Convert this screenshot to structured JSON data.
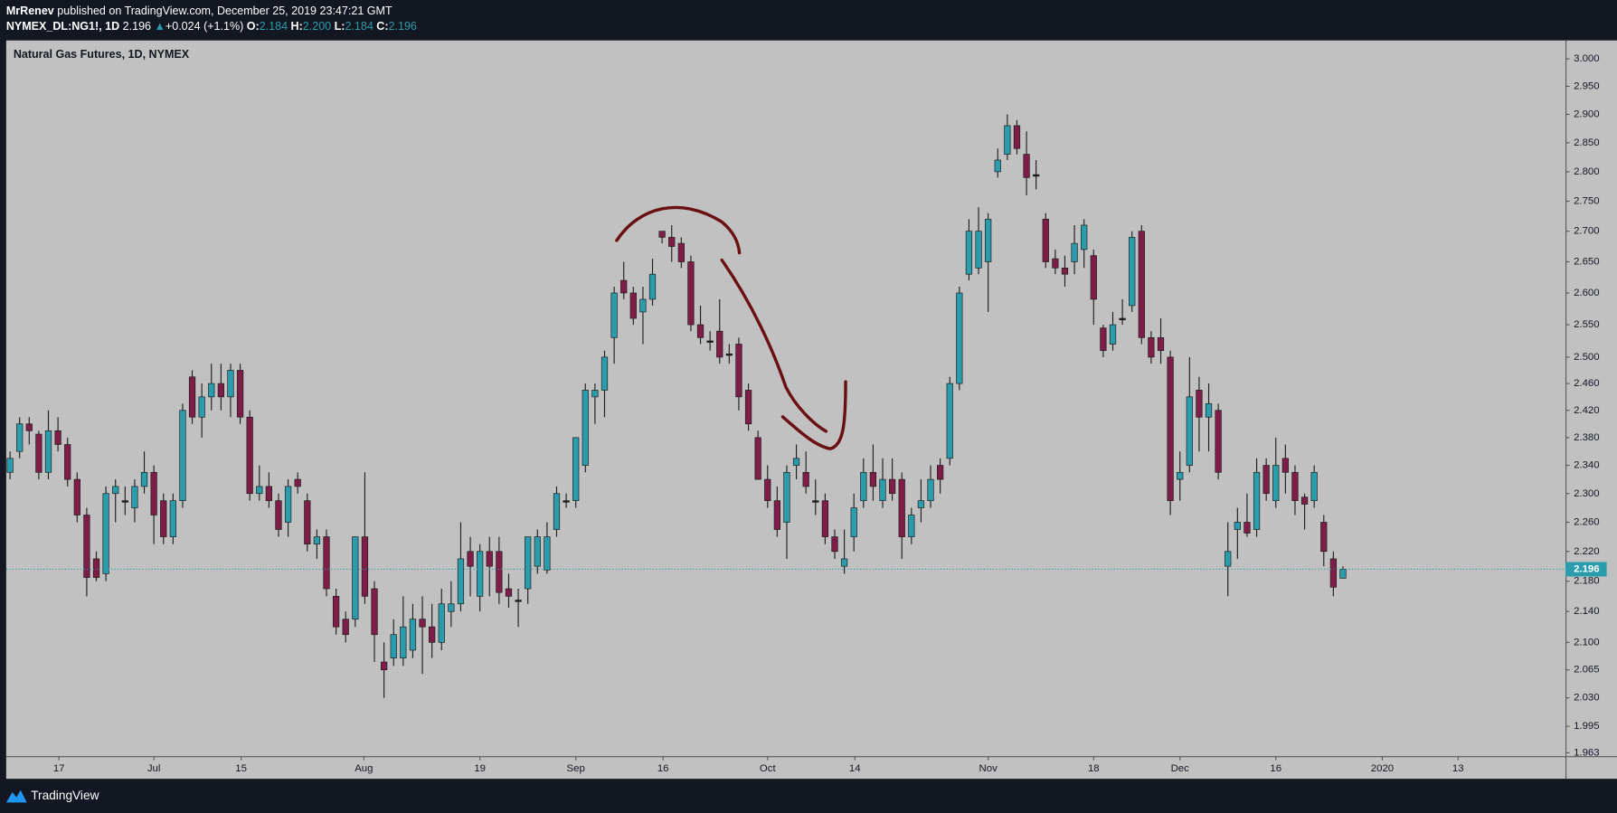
{
  "header": {
    "publisher": "MrRenev",
    "published_text": "published on TradingView.com, December 25, 2019 23:47:21 GMT",
    "symbol": "NYMEX_DL:NG1!, 1D",
    "last": "2.196",
    "arrow": "▲",
    "change": "+0.024 (+1.1%)",
    "ohlc": [
      {
        "label": "O:",
        "value": "2.184"
      },
      {
        "label": "H:",
        "value": "2.200"
      },
      {
        "label": "L:",
        "value": "2.184"
      },
      {
        "label": "C:",
        "value": "2.196"
      }
    ]
  },
  "chart_data": {
    "type": "candlestick",
    "title": "Natural Gas Futures, 1D, NYMEX",
    "log_scale": true,
    "up_color": "#2a9cab",
    "down_color": "#7d1d48",
    "doji_color": "#1e1e1e",
    "open": [
      2.33,
      2.36,
      2.4,
      2.385,
      2.33,
      2.39,
      2.37,
      2.32,
      2.27,
      2.21,
      2.19,
      2.3,
      2.29,
      2.28,
      2.31,
      2.33,
      2.29,
      2.24,
      2.29,
      2.47,
      2.41,
      2.44,
      2.46,
      2.44,
      2.48,
      2.41,
      2.3,
      2.31,
      2.29,
      2.26,
      2.32,
      2.29,
      2.23,
      2.24,
      2.16,
      2.13,
      2.13,
      2.24,
      2.17,
      2.075,
      2.08,
      2.08,
      2.09,
      2.13,
      2.12,
      2.1,
      2.14,
      2.15,
      2.22,
      2.16,
      2.22,
      2.22,
      2.17,
      2.155,
      2.17,
      2.2,
      2.195,
      2.25,
      2.29,
      2.29,
      2.34,
      2.44,
      2.45,
      2.53,
      2.62,
      2.6,
      2.57,
      2.59,
      2.7,
      2.69,
      2.68,
      2.65,
      2.55,
      2.525,
      2.54,
      2.505,
      2.52,
      2.45,
      2.38,
      2.32,
      2.29,
      2.26,
      2.34,
      2.33,
      2.29,
      2.29,
      2.24,
      2.2,
      2.24,
      2.29,
      2.33,
      2.29,
      2.32,
      2.32,
      2.24,
      2.28,
      2.29,
      2.34,
      2.35,
      2.46,
      2.63,
      2.64,
      2.65,
      2.8,
      2.83,
      2.88,
      2.83,
      2.795,
      2.72,
      2.655,
      2.64,
      2.65,
      2.67,
      2.66,
      2.545,
      2.52,
      2.56,
      2.58,
      2.7,
      2.53,
      2.53,
      2.5,
      2.32,
      2.34,
      2.45,
      2.41,
      2.42,
      2.2,
      2.25,
      2.26,
      2.25,
      2.34,
      2.29,
      2.35,
      2.33,
      2.295,
      2.29,
      2.26,
      2.21,
      2.184
    ],
    "high": [
      2.36,
      2.41,
      2.41,
      2.39,
      2.42,
      2.41,
      2.38,
      2.33,
      2.28,
      2.22,
      2.31,
      2.32,
      2.31,
      2.32,
      2.36,
      2.34,
      2.3,
      2.3,
      2.43,
      2.48,
      2.46,
      2.49,
      2.49,
      2.49,
      2.49,
      2.42,
      2.34,
      2.33,
      2.3,
      2.32,
      2.33,
      2.3,
      2.25,
      2.25,
      2.17,
      2.14,
      2.24,
      2.33,
      2.18,
      2.1,
      2.13,
      2.16,
      2.15,
      2.16,
      2.15,
      2.17,
      2.18,
      2.26,
      2.24,
      2.23,
      2.24,
      2.24,
      2.19,
      2.17,
      2.24,
      2.25,
      2.26,
      2.31,
      2.3,
      2.38,
      2.46,
      2.46,
      2.51,
      2.61,
      2.65,
      2.61,
      2.61,
      2.655,
      2.7,
      2.71,
      2.69,
      2.66,
      2.58,
      2.54,
      2.59,
      2.52,
      2.53,
      2.46,
      2.39,
      2.34,
      2.31,
      2.34,
      2.37,
      2.36,
      2.32,
      2.3,
      2.25,
      2.25,
      2.3,
      2.35,
      2.37,
      2.35,
      2.35,
      2.33,
      2.28,
      2.32,
      2.34,
      2.35,
      2.47,
      2.61,
      2.72,
      2.74,
      2.73,
      2.84,
      2.9,
      2.89,
      2.87,
      2.82,
      2.73,
      2.67,
      2.66,
      2.71,
      2.72,
      2.67,
      2.55,
      2.57,
      2.59,
      2.7,
      2.71,
      2.54,
      2.56,
      2.51,
      2.36,
      2.5,
      2.47,
      2.46,
      2.43,
      2.26,
      2.28,
      2.3,
      2.35,
      2.35,
      2.38,
      2.37,
      2.34,
      2.3,
      2.34,
      2.27,
      2.22,
      2.2
    ],
    "low": [
      2.32,
      2.35,
      2.37,
      2.32,
      2.32,
      2.36,
      2.31,
      2.26,
      2.16,
      2.18,
      2.18,
      2.26,
      2.27,
      2.26,
      2.3,
      2.23,
      2.23,
      2.23,
      2.28,
      2.4,
      2.38,
      2.42,
      2.42,
      2.41,
      2.4,
      2.29,
      2.29,
      2.28,
      2.24,
      2.24,
      2.3,
      2.22,
      2.21,
      2.16,
      2.11,
      2.1,
      2.12,
      2.15,
      2.075,
      2.03,
      2.07,
      2.07,
      2.08,
      2.06,
      2.08,
      2.09,
      2.12,
      2.14,
      2.16,
      2.14,
      2.16,
      2.15,
      2.145,
      2.12,
      2.15,
      2.19,
      2.19,
      2.24,
      2.28,
      2.28,
      2.33,
      2.4,
      2.41,
      2.49,
      2.59,
      2.55,
      2.52,
      2.58,
      2.68,
      2.65,
      2.64,
      2.54,
      2.52,
      2.51,
      2.49,
      2.49,
      2.42,
      2.39,
      2.32,
      2.28,
      2.24,
      2.21,
      2.32,
      2.3,
      2.27,
      2.23,
      2.21,
      2.19,
      2.22,
      2.28,
      2.29,
      2.28,
      2.29,
      2.21,
      2.23,
      2.26,
      2.28,
      2.3,
      2.34,
      2.45,
      2.62,
      2.63,
      2.57,
      2.79,
      2.82,
      2.83,
      2.76,
      2.77,
      2.64,
      2.63,
      2.61,
      2.63,
      2.64,
      2.55,
      2.5,
      2.51,
      2.55,
      2.57,
      2.52,
      2.49,
      2.49,
      2.27,
      2.29,
      2.33,
      2.36,
      2.36,
      2.32,
      2.16,
      2.21,
      2.24,
      2.24,
      2.29,
      2.28,
      2.3,
      2.27,
      2.25,
      2.28,
      2.2,
      2.16,
      2.184
    ],
    "close": [
      2.35,
      2.4,
      2.39,
      2.33,
      2.39,
      2.37,
      2.32,
      2.27,
      2.185,
      2.185,
      2.3,
      2.31,
      2.29,
      2.31,
      2.33,
      2.27,
      2.24,
      2.29,
      2.42,
      2.41,
      2.44,
      2.46,
      2.44,
      2.48,
      2.41,
      2.3,
      2.31,
      2.29,
      2.25,
      2.31,
      2.31,
      2.23,
      2.24,
      2.17,
      2.12,
      2.11,
      2.24,
      2.16,
      2.11,
      2.065,
      2.11,
      2.12,
      2.13,
      2.12,
      2.1,
      2.15,
      2.15,
      2.21,
      2.2,
      2.22,
      2.2,
      2.165,
      2.16,
      2.155,
      2.24,
      2.24,
      2.24,
      2.3,
      2.29,
      2.38,
      2.45,
      2.45,
      2.5,
      2.6,
      2.6,
      2.56,
      2.59,
      2.63,
      2.69,
      2.675,
      2.65,
      2.55,
      2.53,
      2.525,
      2.5,
      2.505,
      2.44,
      2.4,
      2.32,
      2.29,
      2.25,
      2.33,
      2.35,
      2.31,
      2.29,
      2.24,
      2.22,
      2.21,
      2.28,
      2.33,
      2.31,
      2.32,
      2.3,
      2.24,
      2.27,
      2.29,
      2.32,
      2.32,
      2.46,
      2.6,
      2.7,
      2.7,
      2.72,
      2.82,
      2.88,
      2.84,
      2.79,
      2.795,
      2.65,
      2.64,
      2.63,
      2.68,
      2.71,
      2.59,
      2.51,
      2.55,
      2.56,
      2.69,
      2.53,
      2.5,
      2.51,
      2.29,
      2.33,
      2.44,
      2.41,
      2.43,
      2.33,
      2.22,
      2.26,
      2.245,
      2.33,
      2.3,
      2.34,
      2.33,
      2.29,
      2.285,
      2.33,
      2.22,
      2.172,
      2.196
    ],
    "last_price": 2.196,
    "ylim": [
      1.959,
      3.034
    ],
    "yticks": [
      1.963,
      1.995,
      {
        "value": 2.03,
        "label": "2.030"
      },
      2.065,
      {
        "value": 2.1,
        "label": "2.100"
      },
      {
        "value": 2.14,
        "label": "2.140"
      },
      {
        "value": 2.18,
        "label": "2.180"
      },
      {
        "value": 2.22,
        "label": "2.220"
      },
      {
        "value": 2.26,
        "label": "2.260"
      },
      {
        "value": 2.3,
        "label": "2.300"
      },
      {
        "value": 2.34,
        "label": "2.340"
      },
      {
        "value": 2.38,
        "label": "2.380"
      },
      {
        "value": 2.42,
        "label": "2.420"
      },
      {
        "value": 2.46,
        "label": "2.460"
      },
      {
        "value": 2.5,
        "label": "2.500"
      },
      {
        "value": 2.55,
        "label": "2.550"
      },
      {
        "value": 2.6,
        "label": "2.600"
      },
      {
        "value": 2.65,
        "label": "2.650"
      },
      {
        "value": 2.7,
        "label": "2.700"
      },
      {
        "value": 2.75,
        "label": "2.750"
      },
      {
        "value": 2.8,
        "label": "2.800"
      },
      {
        "value": 2.85,
        "label": "2.850"
      },
      {
        "value": 2.9,
        "label": "2.900"
      },
      {
        "value": 2.95,
        "label": "2.950"
      },
      {
        "value": 3,
        "label": "3.000"
      }
    ],
    "xlim": [
      -0.4,
      162.2
    ],
    "xticks": [
      {
        "value": 5.1,
        "label": "17"
      },
      {
        "value": 15,
        "label": "Jul"
      },
      {
        "value": 24.1,
        "label": "15"
      },
      {
        "value": 36.9,
        "label": "Aug"
      },
      {
        "value": 49,
        "label": "19"
      },
      {
        "value": 59,
        "label": "Sep"
      },
      {
        "value": 68.1,
        "label": "16"
      },
      {
        "value": 79,
        "label": "Oct"
      },
      {
        "value": 88.1,
        "label": "14"
      },
      {
        "value": 102,
        "label": "Nov"
      },
      {
        "value": 113,
        "label": "18"
      },
      {
        "value": 122,
        "label": "Dec"
      },
      {
        "value": 132,
        "label": "16"
      },
      {
        "value": 143.1,
        "label": "2020"
      },
      {
        "value": 151,
        "label": "13"
      }
    ]
  },
  "footer": {
    "brand": "TradingView"
  }
}
